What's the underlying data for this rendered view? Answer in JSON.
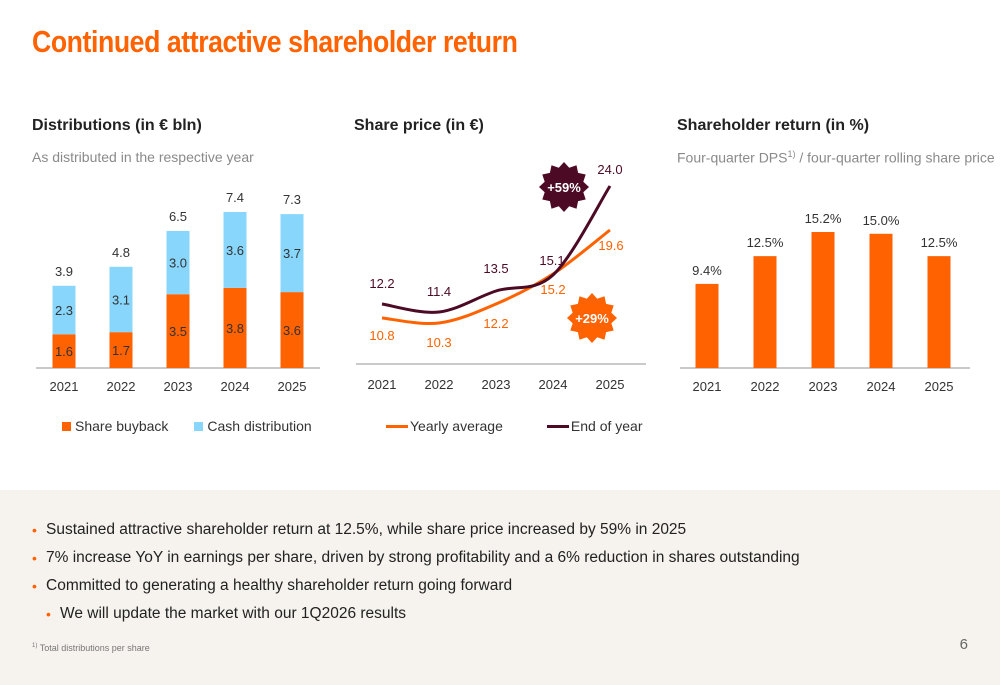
{
  "slide": {
    "title": "Continued attractive shareholder return",
    "page_number": "6",
    "footnote": {
      "marker": "1)",
      "text": "Total distributions per share"
    },
    "bullets": [
      {
        "text": "Sustained attractive shareholder return at 12.5%, while share price increased by 59% in 2025",
        "level": 1
      },
      {
        "text": "7% increase YoY in earnings per share, driven by strong profitability and a 6% reduction in shares outstanding",
        "level": 1
      },
      {
        "text": "Committed to generating a healthy shareholder return going forward",
        "level": 1
      },
      {
        "text": "We will update the market with our 1Q2026 results",
        "level": 2
      }
    ],
    "colors": {
      "orange": "#FF6200",
      "light_blue": "#89D6FD",
      "dark_maroon": "#4C0A24",
      "grey_bg": "#F6F2EE"
    }
  },
  "panels": {
    "distributions": {
      "title": "Distributions (in € bln)",
      "subtitle": "As distributed in the respective year"
    },
    "share_price": {
      "title": "Share price (in €)",
      "subtitle": ""
    },
    "shareholder_return": {
      "title": "Shareholder return (in %)",
      "subtitle_pre": "Four-quarter DPS",
      "subtitle_sup": "1)",
      "subtitle_post": " / four-quarter rolling share price"
    }
  },
  "chart_data": [
    {
      "type": "bar",
      "stacked": true,
      "title": "Distributions (in € bln)",
      "subtitle": "As distributed in the respective year",
      "categories": [
        "2021",
        "2022",
        "2023",
        "2024",
        "2025"
      ],
      "series": [
        {
          "name": "Share buyback",
          "color": "#FF6200",
          "values": [
            1.6,
            1.7,
            3.5,
            3.8,
            3.6
          ],
          "labels": [
            "1.6",
            "1.7",
            "3.5",
            "3.8",
            "3.6"
          ]
        },
        {
          "name": "Cash distribution",
          "color": "#89D6FD",
          "values": [
            2.3,
            3.1,
            3.0,
            3.6,
            3.7
          ],
          "labels": [
            "2.3",
            "3.1",
            "3.0",
            "3.6",
            "3.7"
          ]
        }
      ],
      "totals": [
        3.9,
        4.8,
        6.5,
        7.4,
        7.3
      ],
      "total_labels": [
        "3.9",
        "4.8",
        "6.5",
        "7.4",
        "7.3"
      ],
      "legend": [
        "Share buyback",
        "Cash distribution"
      ],
      "legend_position": "bottom",
      "ylim": [
        0,
        8
      ]
    },
    {
      "type": "line",
      "title": "Share price (in €)",
      "categories": [
        "2021",
        "2022",
        "2023",
        "2024",
        "2025"
      ],
      "series": [
        {
          "name": "Yearly average",
          "color": "#FF6200",
          "values": [
            10.8,
            10.3,
            12.2,
            15.2,
            19.6
          ],
          "labels": [
            "10.8",
            "10.3",
            "12.2",
            "15.2",
            "19.6"
          ]
        },
        {
          "name": "End of year",
          "color": "#4C0A24",
          "values": [
            12.2,
            11.4,
            13.5,
            15.1,
            24.0
          ],
          "labels": [
            "12.2",
            "11.4",
            "13.5",
            "15.1",
            "24.0"
          ]
        }
      ],
      "annotations": [
        {
          "text": "+59%",
          "series": "End of year",
          "color": "#4C0A24"
        },
        {
          "text": "+29%",
          "series": "Yearly average",
          "color": "#FF6200"
        }
      ],
      "legend": [
        "Yearly average",
        "End of year"
      ],
      "legend_position": "bottom",
      "ylim": [
        6,
        25
      ]
    },
    {
      "type": "bar",
      "title": "Shareholder return (in %)",
      "subtitle": "Four-quarter DPS1) / four-quarter rolling share price",
      "categories": [
        "2021",
        "2022",
        "2023",
        "2024",
        "2025"
      ],
      "values": [
        9.4,
        12.5,
        15.2,
        15.0,
        12.5
      ],
      "labels": [
        "9.4%",
        "12.5%",
        "15.2%",
        "15.0%",
        "12.5%"
      ],
      "color": "#FF6200",
      "ylim": [
        0,
        16
      ]
    }
  ]
}
